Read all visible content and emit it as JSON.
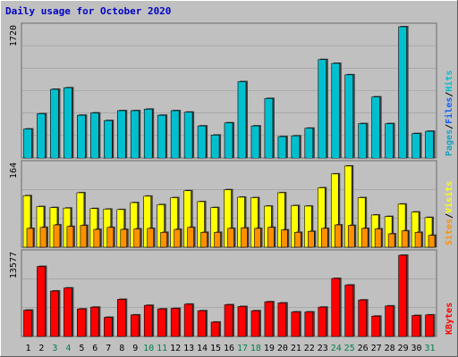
{
  "colors": {
    "page_bg": "#c0c0c0",
    "plot_bg": "#c0c0c0",
    "frame": "#6b6b6b",
    "title": "#0000c8",
    "hits": "#00c0d0",
    "files": "#1060ff",
    "pages": "#1aa0c0",
    "visits": "#ffff00",
    "sites": "#ff9000",
    "kbytes": "#ff0000",
    "weekend_day": "#00804a",
    "weekday": "#000000"
  },
  "chart_data": [
    {
      "type": "bar",
      "title": "Daily usage for October 2020",
      "categories": [
        "1",
        "2",
        "3",
        "4",
        "5",
        "6",
        "7",
        "8",
        "9",
        "10",
        "11",
        "12",
        "13",
        "14",
        "15",
        "16",
        "17",
        "18",
        "19",
        "20",
        "21",
        "22",
        "23",
        "24",
        "25",
        "26",
        "27",
        "28",
        "29",
        "30",
        "31"
      ],
      "weekend_days": [
        "3",
        "4",
        "10",
        "11",
        "17",
        "18",
        "24",
        "25",
        "31"
      ],
      "ylabel_parts": [
        "Pages",
        "/",
        "Files",
        "/",
        "Hits"
      ],
      "ymax_label": "1720",
      "ylim": [
        0,
        1720
      ],
      "series": [
        {
          "name": "Hits",
          "values": [
            380,
            580,
            900,
            920,
            560,
            590,
            490,
            620,
            620,
            640,
            560,
            620,
            600,
            420,
            300,
            460,
            1000,
            420,
            780,
            280,
            290,
            390,
            1290,
            1240,
            1090,
            450,
            800,
            450,
            1720,
            320,
            350
          ]
        },
        {
          "name": "Files",
          "values": [
            370,
            560,
            880,
            910,
            540,
            570,
            480,
            600,
            600,
            630,
            540,
            610,
            590,
            400,
            290,
            450,
            990,
            400,
            770,
            270,
            280,
            380,
            1280,
            1230,
            1080,
            440,
            790,
            440,
            1700,
            310,
            340
          ]
        },
        {
          "name": "Pages",
          "values": [
            370,
            560,
            870,
            900,
            540,
            570,
            480,
            600,
            600,
            620,
            540,
            610,
            590,
            410,
            290,
            450,
            980,
            410,
            760,
            270,
            270,
            370,
            1270,
            1220,
            1070,
            440,
            780,
            430,
            1700,
            300,
            330
          ]
        }
      ]
    },
    {
      "type": "bar",
      "categories": [
        "1",
        "2",
        "3",
        "4",
        "5",
        "6",
        "7",
        "8",
        "9",
        "10",
        "11",
        "12",
        "13",
        "14",
        "15",
        "16",
        "17",
        "18",
        "19",
        "20",
        "21",
        "22",
        "23",
        "24",
        "25",
        "26",
        "27",
        "28",
        "29",
        "30",
        "31"
      ],
      "ylabel_parts": [
        "Sites",
        "/",
        "Visits"
      ],
      "ymax_label": "164",
      "ylim": [
        0,
        164
      ],
      "series": [
        {
          "name": "Visits",
          "values": [
            104,
            82,
            80,
            79,
            110,
            78,
            77,
            76,
            90,
            103,
            86,
            100,
            114,
            92,
            80,
            116,
            101,
            100,
            83,
            110,
            84,
            83,
            120,
            148,
            164,
            100,
            65,
            62,
            87,
            71,
            60
          ]
        },
        {
          "name": "Sites",
          "values": [
            38,
            40,
            45,
            42,
            44,
            36,
            40,
            36,
            37,
            38,
            30,
            36,
            40,
            30,
            30,
            38,
            39,
            38,
            40,
            35,
            30,
            32,
            38,
            45,
            44,
            38,
            37,
            27,
            33,
            30,
            24
          ]
        }
      ]
    },
    {
      "type": "bar",
      "categories": [
        "1",
        "2",
        "3",
        "4",
        "5",
        "6",
        "7",
        "8",
        "9",
        "10",
        "11",
        "12",
        "13",
        "14",
        "15",
        "16",
        "17",
        "18",
        "19",
        "20",
        "21",
        "22",
        "23",
        "24",
        "25",
        "26",
        "27",
        "28",
        "29",
        "30",
        "31"
      ],
      "ylabel_parts": [
        "KBytes"
      ],
      "ymax_label": "13577",
      "ylim": [
        0,
        13577
      ],
      "series": [
        {
          "name": "KBytes",
          "values": [
            4400,
            11700,
            7600,
            8100,
            4600,
            4900,
            3200,
            6200,
            3600,
            5200,
            4600,
            4700,
            5400,
            4300,
            2400,
            5300,
            5000,
            4300,
            5800,
            5600,
            4100,
            4100,
            4900,
            9700,
            8600,
            6100,
            3400,
            5100,
            13577,
            3500,
            3600
          ]
        }
      ]
    }
  ]
}
